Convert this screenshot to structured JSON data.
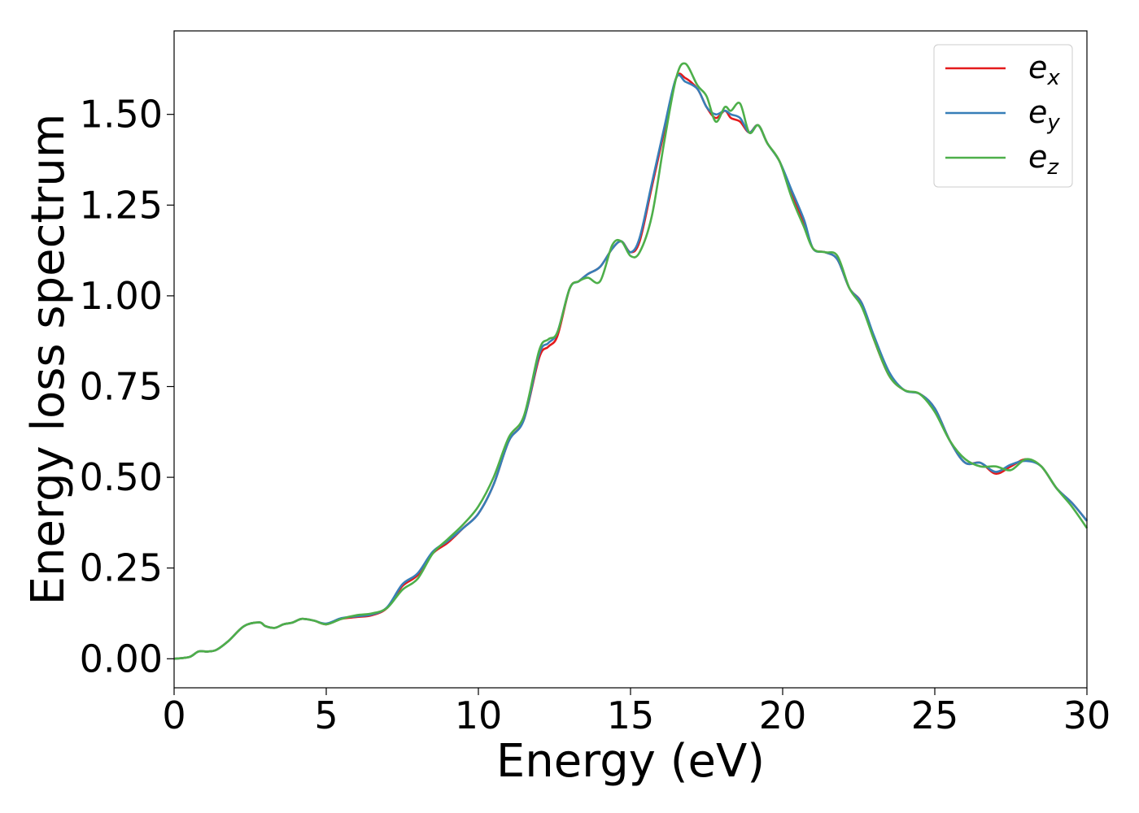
{
  "chart_data": {
    "type": "line",
    "xlabel": "Energy (eV)",
    "ylabel": "Energy loss spectrum",
    "xlim": [
      0,
      30
    ],
    "ylim": [
      -0.08,
      1.73
    ],
    "xticks": [
      0,
      5,
      10,
      15,
      20,
      25,
      30
    ],
    "xtick_labels": [
      "0",
      "5",
      "10",
      "15",
      "20",
      "25",
      "30"
    ],
    "yticks": [
      0.0,
      0.25,
      0.5,
      0.75,
      1.0,
      1.25,
      1.5
    ],
    "ytick_labels": [
      "0.00",
      "0.25",
      "0.50",
      "0.75",
      "1.00",
      "1.25",
      "1.50"
    ],
    "grid": false,
    "legend_position": "top-right",
    "series": [
      {
        "name": "e_x",
        "label_main": "e",
        "label_sub": "x",
        "color": "#e41a1c",
        "x": [
          0,
          0.5,
          0.8,
          1.1,
          1.4,
          1.8,
          2.3,
          2.8,
          3.0,
          3.3,
          3.6,
          3.9,
          4.2,
          4.6,
          5.0,
          5.5,
          6.0,
          6.5,
          7.0,
          7.5,
          8.0,
          8.5,
          9.0,
          9.5,
          10.0,
          10.5,
          11.0,
          11.5,
          12.0,
          12.3,
          12.6,
          13.0,
          13.3,
          13.6,
          14.0,
          14.4,
          14.7,
          15.0,
          15.3,
          15.7,
          16.1,
          16.5,
          16.8,
          17.2,
          17.5,
          17.8,
          18.1,
          18.3,
          18.6,
          18.9,
          19.2,
          19.5,
          19.9,
          20.3,
          20.7,
          21.0,
          21.4,
          21.8,
          22.2,
          22.6,
          23.0,
          23.5,
          24.0,
          24.5,
          25.0,
          25.5,
          26.0,
          26.5,
          27.0,
          27.5,
          28.0,
          28.5,
          29.0,
          29.5,
          30.0
        ],
        "values": [
          0.0,
          0.005,
          0.02,
          0.02,
          0.025,
          0.05,
          0.09,
          0.1,
          0.09,
          0.085,
          0.095,
          0.1,
          0.11,
          0.105,
          0.095,
          0.11,
          0.115,
          0.12,
          0.14,
          0.2,
          0.23,
          0.29,
          0.32,
          0.36,
          0.4,
          0.48,
          0.6,
          0.66,
          0.83,
          0.86,
          0.89,
          1.02,
          1.04,
          1.06,
          1.08,
          1.13,
          1.15,
          1.12,
          1.15,
          1.3,
          1.45,
          1.6,
          1.6,
          1.57,
          1.52,
          1.49,
          1.51,
          1.49,
          1.48,
          1.45,
          1.47,
          1.42,
          1.37,
          1.28,
          1.2,
          1.13,
          1.12,
          1.1,
          1.02,
          0.98,
          0.88,
          0.78,
          0.74,
          0.73,
          0.69,
          0.6,
          0.54,
          0.54,
          0.51,
          0.53,
          0.55,
          0.53,
          0.47,
          0.43,
          0.38
        ]
      },
      {
        "name": "e_y",
        "label_main": "e",
        "label_sub": "y",
        "color": "#377eb8",
        "x": [
          0,
          0.5,
          0.8,
          1.1,
          1.4,
          1.8,
          2.3,
          2.8,
          3.0,
          3.3,
          3.6,
          3.9,
          4.2,
          4.6,
          5.0,
          5.5,
          6.0,
          6.5,
          7.0,
          7.5,
          8.0,
          8.5,
          9.0,
          9.5,
          10.0,
          10.5,
          11.0,
          11.5,
          12.0,
          12.3,
          12.6,
          13.0,
          13.3,
          13.6,
          14.0,
          14.4,
          14.7,
          15.0,
          15.3,
          15.7,
          16.1,
          16.5,
          16.8,
          17.2,
          17.5,
          17.8,
          18.1,
          18.3,
          18.6,
          18.9,
          19.2,
          19.5,
          19.9,
          20.3,
          20.7,
          21.0,
          21.4,
          21.8,
          22.2,
          22.6,
          23.0,
          23.5,
          24.0,
          24.5,
          25.0,
          25.5,
          26.0,
          26.5,
          27.0,
          27.5,
          28.0,
          28.5,
          29.0,
          29.5,
          30.0
        ],
        "values": [
          0.0,
          0.005,
          0.02,
          0.02,
          0.025,
          0.05,
          0.09,
          0.1,
          0.09,
          0.085,
          0.095,
          0.1,
          0.11,
          0.105,
          0.097,
          0.112,
          0.117,
          0.122,
          0.142,
          0.205,
          0.235,
          0.295,
          0.325,
          0.36,
          0.4,
          0.48,
          0.6,
          0.66,
          0.84,
          0.87,
          0.9,
          1.02,
          1.04,
          1.06,
          1.08,
          1.13,
          1.15,
          1.12,
          1.16,
          1.31,
          1.46,
          1.6,
          1.59,
          1.57,
          1.52,
          1.5,
          1.51,
          1.5,
          1.49,
          1.45,
          1.47,
          1.42,
          1.37,
          1.29,
          1.21,
          1.13,
          1.12,
          1.1,
          1.02,
          0.98,
          0.89,
          0.79,
          0.74,
          0.73,
          0.69,
          0.6,
          0.54,
          0.54,
          0.515,
          0.535,
          0.545,
          0.53,
          0.47,
          0.43,
          0.38
        ]
      },
      {
        "name": "e_z",
        "label_main": "e",
        "label_sub": "z",
        "color": "#4daf4a",
        "x": [
          0,
          0.5,
          0.8,
          1.1,
          1.4,
          1.8,
          2.3,
          2.8,
          3.0,
          3.3,
          3.6,
          3.9,
          4.2,
          4.6,
          5.0,
          5.5,
          6.0,
          6.5,
          7.0,
          7.5,
          8.0,
          8.5,
          9.0,
          9.5,
          10.0,
          10.5,
          11.0,
          11.5,
          12.0,
          12.3,
          12.6,
          13.0,
          13.3,
          13.6,
          14.0,
          14.4,
          14.7,
          15.0,
          15.3,
          15.7,
          16.1,
          16.5,
          16.8,
          17.2,
          17.5,
          17.8,
          18.1,
          18.3,
          18.6,
          18.9,
          19.2,
          19.5,
          19.9,
          20.3,
          20.7,
          21.0,
          21.4,
          21.8,
          22.2,
          22.6,
          23.0,
          23.5,
          24.0,
          24.5,
          25.0,
          25.5,
          26.0,
          26.5,
          27.0,
          27.5,
          28.0,
          28.5,
          29.0,
          29.5,
          30.0
        ],
        "values": [
          0.0,
          0.005,
          0.02,
          0.02,
          0.025,
          0.05,
          0.09,
          0.1,
          0.09,
          0.085,
          0.095,
          0.1,
          0.11,
          0.105,
          0.095,
          0.11,
          0.12,
          0.125,
          0.14,
          0.19,
          0.22,
          0.29,
          0.33,
          0.37,
          0.42,
          0.5,
          0.61,
          0.67,
          0.85,
          0.88,
          0.9,
          1.02,
          1.04,
          1.05,
          1.04,
          1.14,
          1.15,
          1.11,
          1.12,
          1.22,
          1.42,
          1.6,
          1.64,
          1.58,
          1.55,
          1.48,
          1.52,
          1.51,
          1.53,
          1.45,
          1.47,
          1.42,
          1.37,
          1.27,
          1.19,
          1.13,
          1.12,
          1.11,
          1.02,
          0.97,
          0.88,
          0.78,
          0.74,
          0.73,
          0.68,
          0.6,
          0.55,
          0.53,
          0.53,
          0.52,
          0.55,
          0.53,
          0.47,
          0.42,
          0.36
        ]
      }
    ]
  }
}
